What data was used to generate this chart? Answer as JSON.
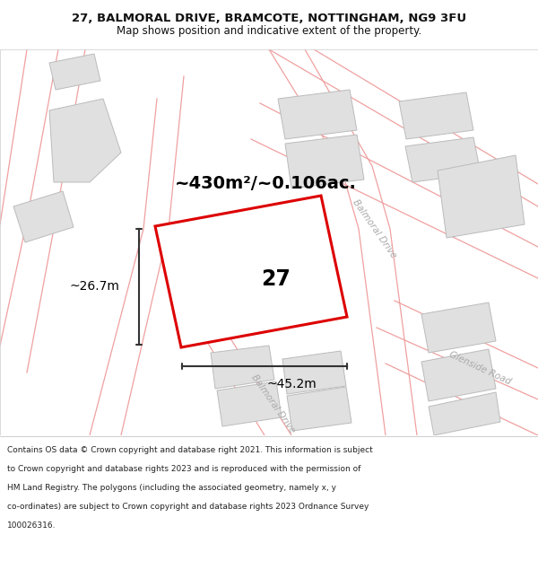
{
  "title_line1": "27, BALMORAL DRIVE, BRAMCOTE, NOTTINGHAM, NG9 3FU",
  "title_line2": "Map shows position and indicative extent of the property.",
  "area_text": "~430m²/~0.106ac.",
  "dim_width": "~45.2m",
  "dim_height": "~26.7m",
  "plot_number": "27",
  "road_label_upper": "Balmoral Drive",
  "road_label_lower": "Balmoral Drive",
  "road_label_right": "Glenside Road",
  "footer_text": "Contains OS data © Crown copyright and database right 2021. This information is subject to Crown copyright and database rights 2023 and is reproduced with the permission of HM Land Registry. The polygons (including the associated geometry, namely x, y co-ordinates) are subject to Crown copyright and database rights 2023 Ordnance Survey 100026316.",
  "bg_color": "#ffffff",
  "plot_fill": "#ffffff",
  "plot_edge": "#dd0000",
  "bld_fill": "#e0e0e0",
  "bld_edge": "#bbbbbb",
  "road_line": "#f0a0a0",
  "dim_color": "#333333",
  "text_color": "#111111",
  "road_label_color": "#aaaaaa",
  "title_bg": "#ffffff",
  "footer_bg": "#ffffff"
}
